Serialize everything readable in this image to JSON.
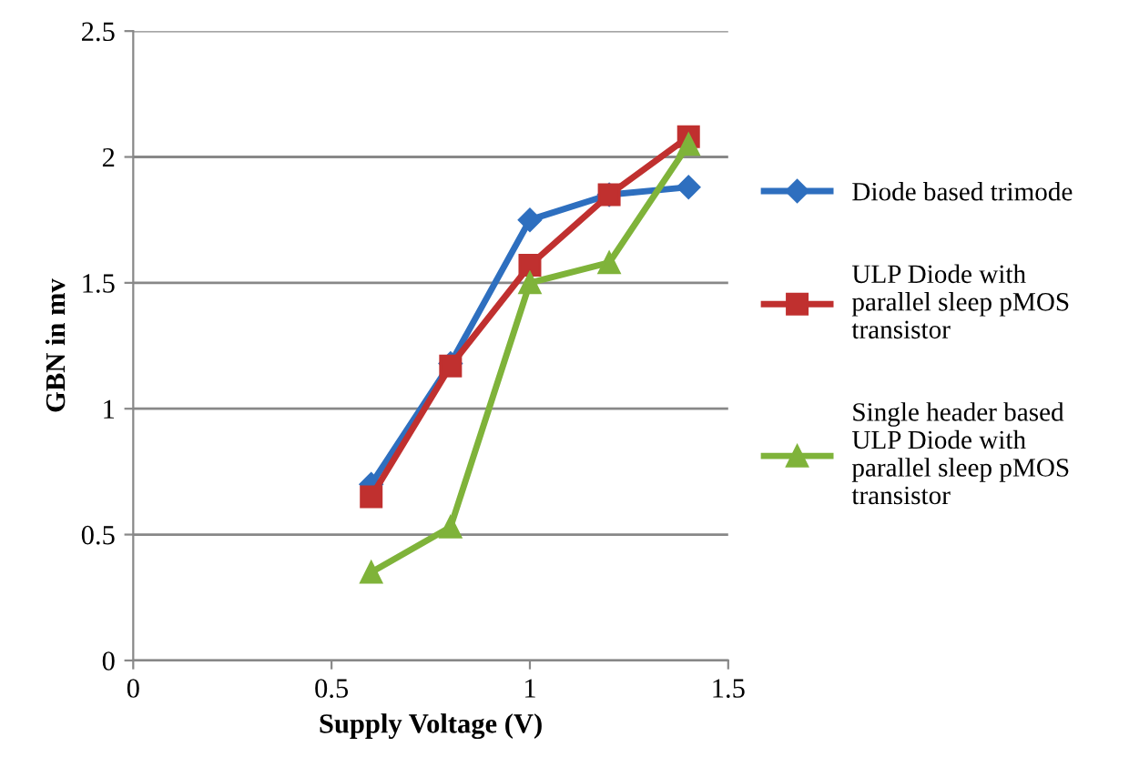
{
  "chart_data": {
    "type": "line",
    "xlabel": "Supply Voltage (V)",
    "ylabel": "GBN in mv",
    "x": [
      0.6,
      0.8,
      1.0,
      1.2,
      1.4
    ],
    "series": [
      {
        "name": "Diode based trimode",
        "color": "#2e6fbf",
        "marker": "diamond",
        "values": [
          0.7,
          1.18,
          1.75,
          1.85,
          1.88
        ]
      },
      {
        "name": "ULP Diode with\nparallel sleep pMOS\ntransistor",
        "color": "#c0302f",
        "marker": "square",
        "values": [
          0.65,
          1.17,
          1.57,
          1.85,
          2.08
        ]
      },
      {
        "name": "Single header based\nULP Diode with\nparallel sleep pMOS\ntransistor",
        "color": "#7fb33a",
        "marker": "triangle",
        "values": [
          0.35,
          0.53,
          1.5,
          1.58,
          2.05
        ]
      }
    ],
    "xlim": [
      0,
      1.5
    ],
    "xticks": [
      0,
      0.5,
      1,
      1.5
    ],
    "ylim": [
      0,
      2.5
    ],
    "yticks": [
      0,
      0.5,
      1,
      1.5,
      2,
      2.5
    ],
    "grid": "y",
    "legend": "right",
    "line_style": "solid"
  }
}
